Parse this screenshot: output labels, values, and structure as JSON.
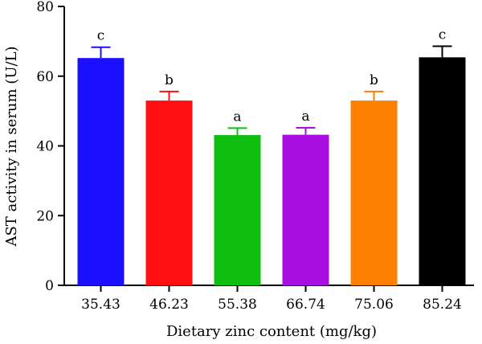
{
  "chart_data": {
    "type": "bar",
    "title": "",
    "xlabel": "Dietary zinc content (mg/kg)",
    "ylabel": "AST activity in serum (U/L)",
    "ylim": [
      0,
      80
    ],
    "yticks": [
      0,
      20,
      40,
      60,
      80
    ],
    "categories": [
      "35.43",
      "46.23",
      "55.38",
      "66.74",
      "75.06",
      "85.24"
    ],
    "values": [
      65.2,
      53.0,
      43.1,
      43.2,
      53.0,
      65.4
    ],
    "errors": [
      3.1,
      2.6,
      2.0,
      2.0,
      2.6,
      3.2
    ],
    "significance": [
      "c",
      "b",
      "a",
      "a",
      "b",
      "c"
    ],
    "colors": [
      "#1a10ff",
      "#ff0f0f",
      "#0fbf0f",
      "#a80fe0",
      "#ff8000",
      "#000000"
    ],
    "grid": false,
    "legend": "none"
  }
}
